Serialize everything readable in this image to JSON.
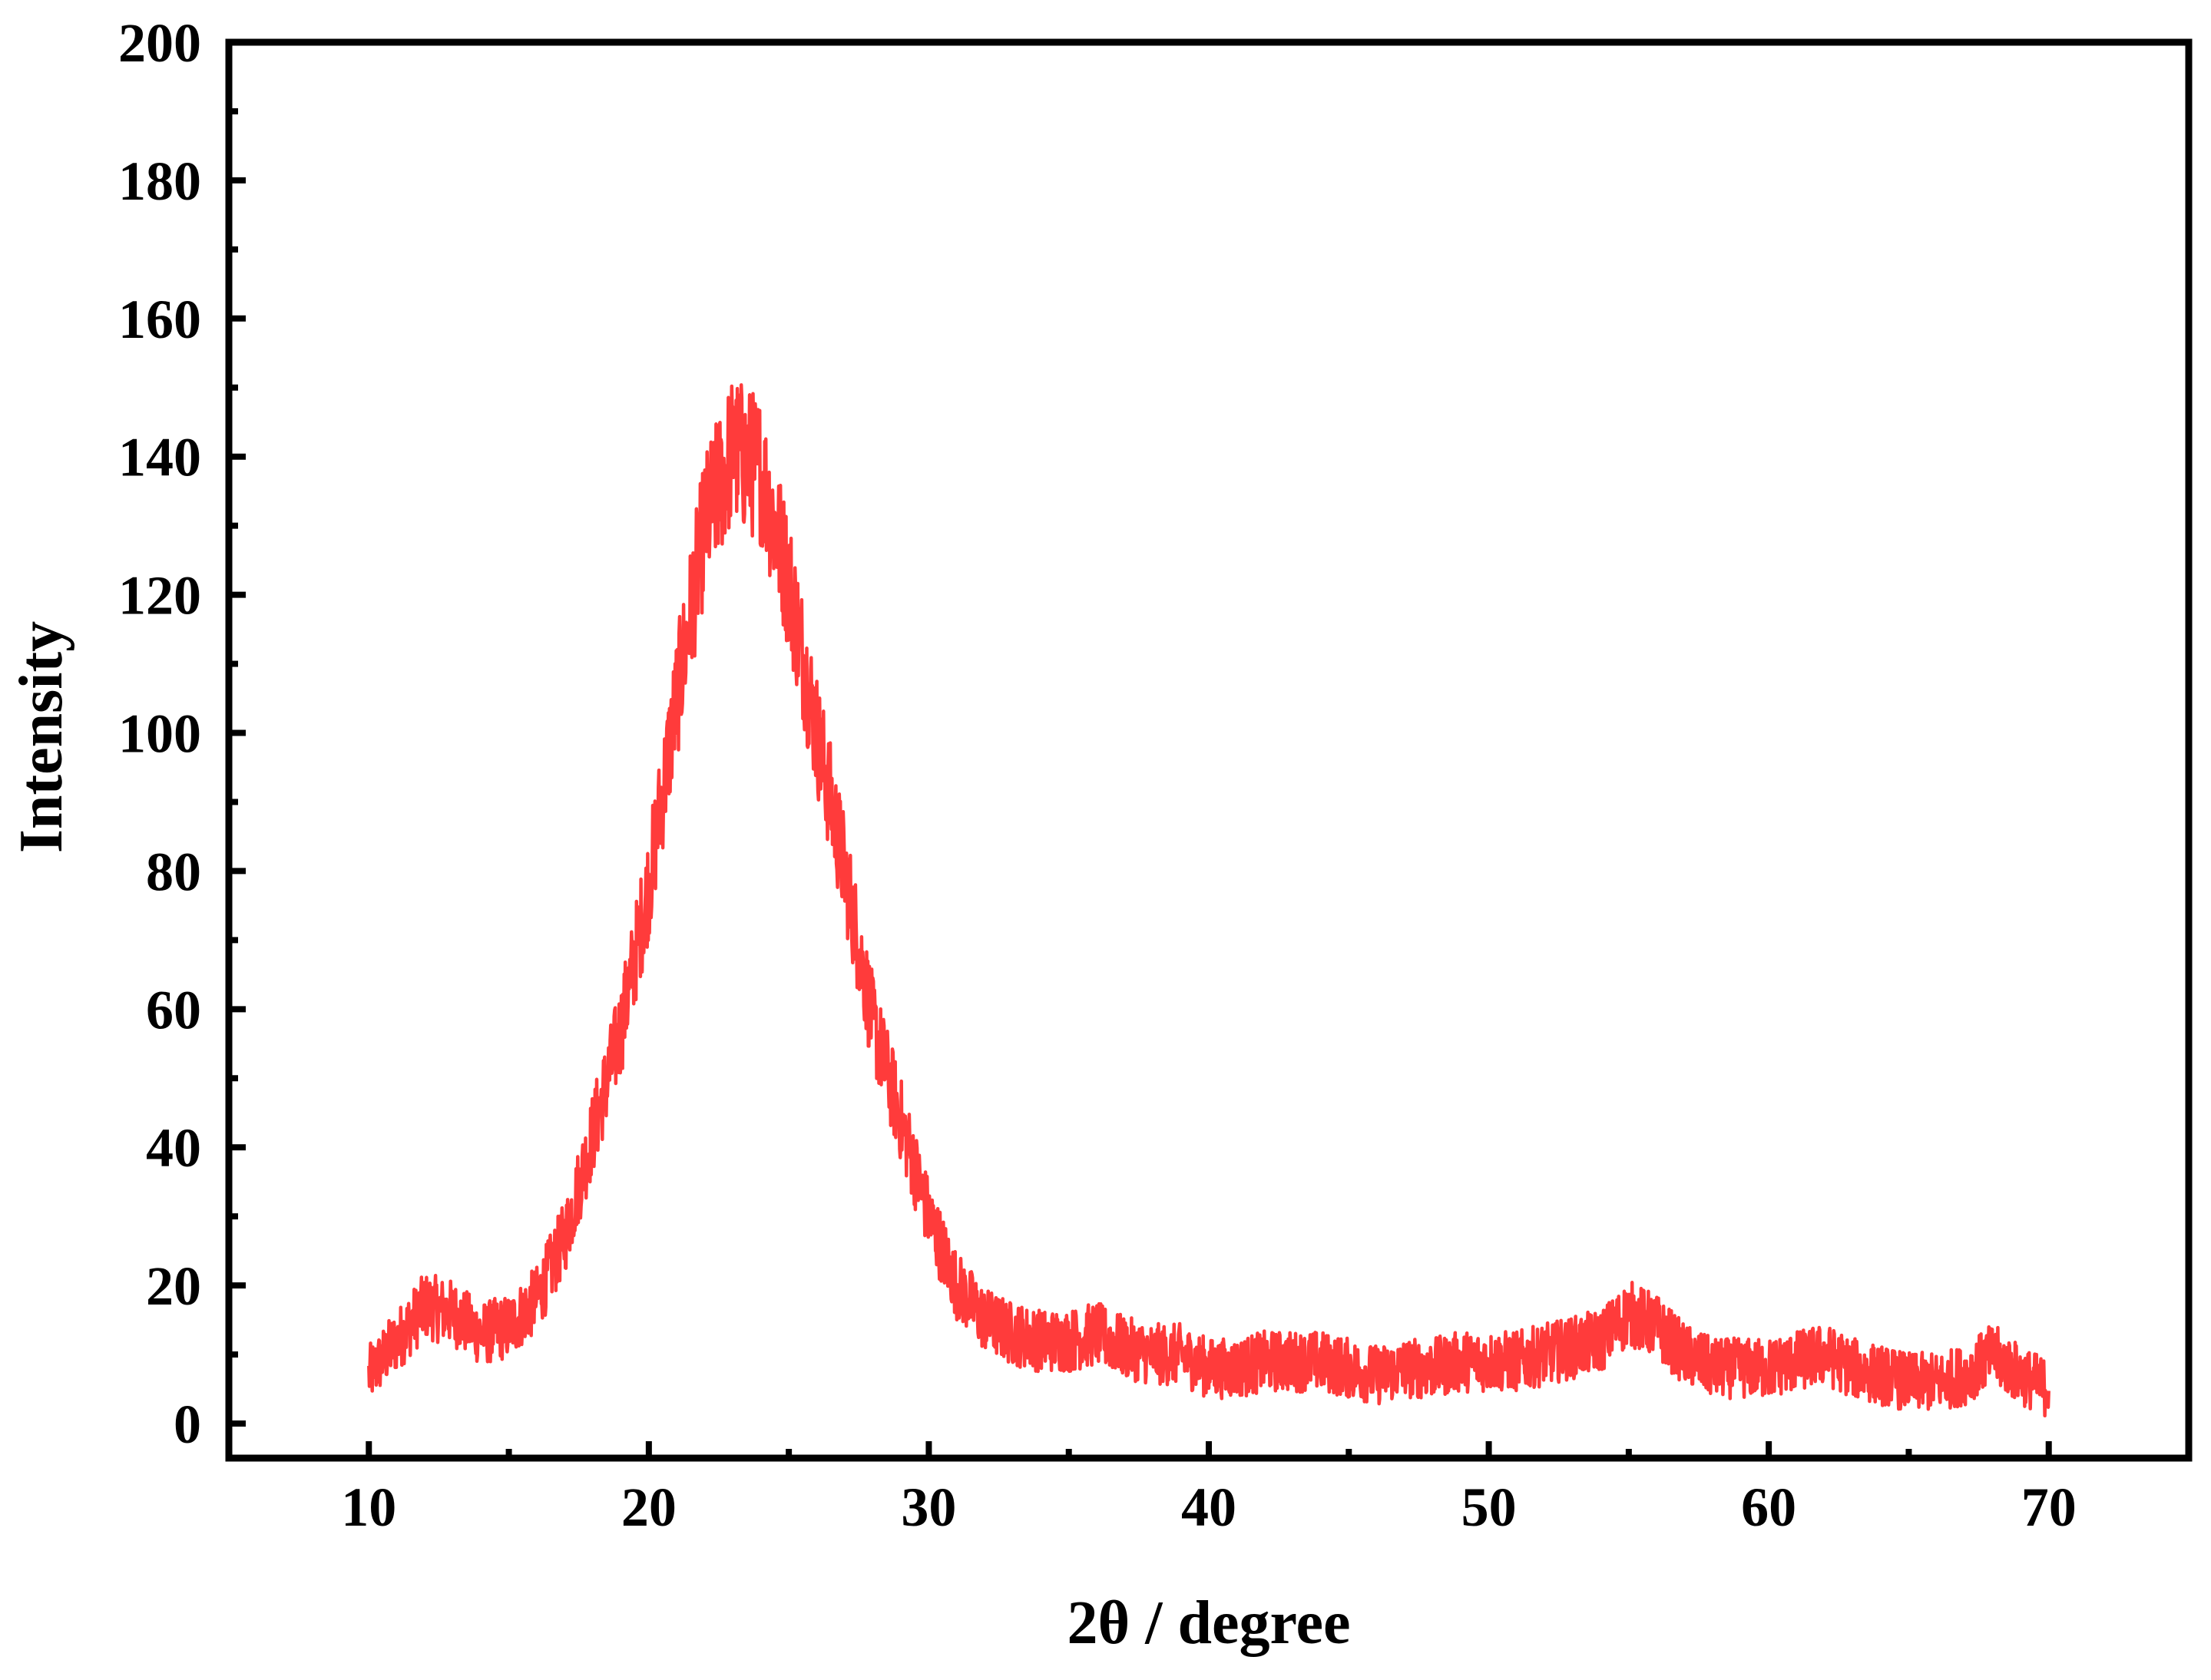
{
  "chart_data": {
    "type": "line",
    "title": "",
    "xlabel": "2θ / degree",
    "ylabel": "Intensity",
    "xlim": [
      5,
      75
    ],
    "ylim": [
      -5,
      200
    ],
    "xticks": [
      10,
      20,
      30,
      40,
      50,
      60,
      70
    ],
    "yticks": [
      0,
      20,
      40,
      60,
      80,
      100,
      120,
      140,
      160,
      180,
      200
    ],
    "xtick_labels": [
      "10",
      "20",
      "30",
      "40",
      "50",
      "60",
      "70"
    ],
    "ytick_labels": [
      "0",
      "20",
      "40",
      "60",
      "80",
      "100",
      "120",
      "140",
      "160",
      "180",
      "200"
    ],
    "grid": false,
    "legend": "none",
    "series": [
      {
        "color": "#ff3b3b",
        "x": [
          10,
          11,
          12,
          13,
          14,
          15,
          16,
          17,
          18,
          19,
          20,
          21,
          22,
          23,
          24,
          25,
          26,
          27,
          28,
          29,
          30,
          31,
          32,
          33,
          34,
          35,
          36,
          37,
          38,
          39,
          40,
          41,
          42,
          43,
          44,
          45,
          46,
          47,
          48,
          49,
          50,
          51,
          52,
          53,
          54,
          55,
          56,
          57,
          58,
          59,
          60,
          61,
          62,
          63,
          64,
          65,
          66,
          67,
          68,
          69,
          70
        ],
        "y": [
          7,
          12,
          17,
          16,
          13,
          14,
          18,
          27,
          42,
          57,
          78,
          105,
          130,
          141,
          138,
          122,
          100,
          80,
          58,
          44,
          30,
          20,
          15,
          13,
          12,
          12,
          13,
          11,
          10,
          10,
          8,
          8,
          9,
          9,
          9,
          8,
          7,
          8,
          8,
          9,
          9,
          9,
          10,
          11,
          12,
          16,
          14,
          10,
          8,
          8,
          8,
          9,
          10,
          8,
          7,
          6,
          6,
          7,
          10,
          7,
          5
        ]
      }
    ]
  }
}
